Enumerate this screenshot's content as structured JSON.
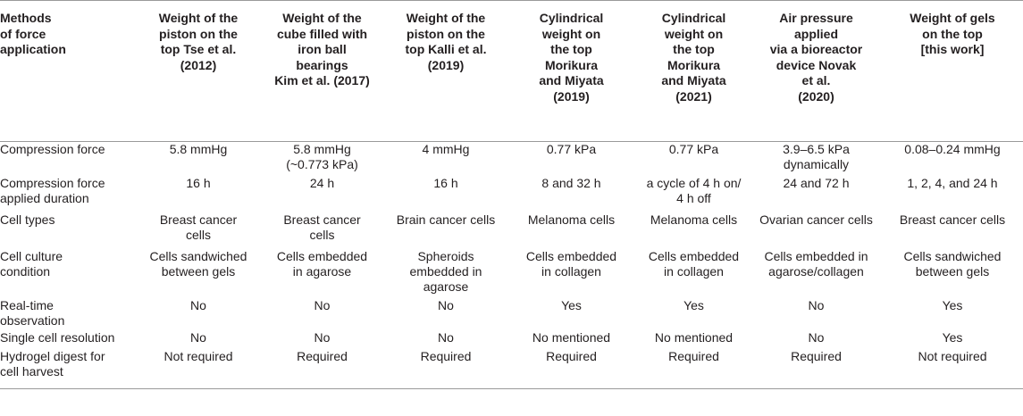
{
  "table": {
    "headers": [
      "Methods\nof force\napplication",
      "Weight of the\npiston on the\ntop Tse et al.\n(2012)",
      "Weight of the\ncube filled with\niron ball\nbearings\nKim et al. (2017)",
      "Weight of the\npiston on the\ntop Kalli et al.\n(2019)",
      "Cylindrical\nweight on\nthe top\nMorikura\nand Miyata\n(2019)",
      "Cylindrical\nweight on\nthe top\nMorikura\nand Miyata\n(2021)",
      "Air pressure\napplied\nvia a bioreactor\ndevice Novak\net al.\n(2020)",
      "Weight of gels\non the top\n[this work]"
    ],
    "rows": [
      [
        "Compression force",
        "5.8 mmHg",
        "5.8 mmHg\n(~0.773 kPa)",
        "4 mmHg",
        "0.77 kPa",
        "0.77 kPa",
        "3.9–6.5 kPa\ndynamically",
        "0.08–0.24 mmHg"
      ],
      [
        "Compression force\napplied duration",
        "16 h",
        "24 h",
        "16 h",
        "8 and 32 h",
        "a cycle of 4 h on/\n4 h off",
        "24 and 72 h",
        "1, 2, 4, and 24 h"
      ],
      [
        "Cell types",
        "Breast cancer\ncells",
        "Breast cancer\ncells",
        "Brain cancer cells",
        "Melanoma cells",
        "Melanoma cells",
        "Ovarian cancer cells",
        "Breast cancer cells"
      ],
      [
        "Cell culture\ncondition",
        "Cells sandwiched\nbetween gels",
        "Cells embedded\nin agarose",
        "Spheroids\nembedded in\nagarose",
        "Cells embedded\nin collagen",
        "Cells embedded\nin collagen",
        "Cells embedded in\nagarose/collagen",
        "Cells sandwiched\nbetween gels"
      ],
      [
        "Real-time\nobservation",
        "No",
        "No",
        "No",
        "Yes",
        "Yes",
        "No",
        "Yes"
      ],
      [
        "Single cell resolution",
        "No",
        "No",
        "No",
        "No mentioned",
        "No mentioned",
        "No",
        "Yes"
      ],
      [
        "Hydrogel digest for\ncell harvest",
        "Not required",
        "Required",
        "Required",
        "Required",
        "Required",
        "Required",
        "Not required"
      ]
    ]
  }
}
